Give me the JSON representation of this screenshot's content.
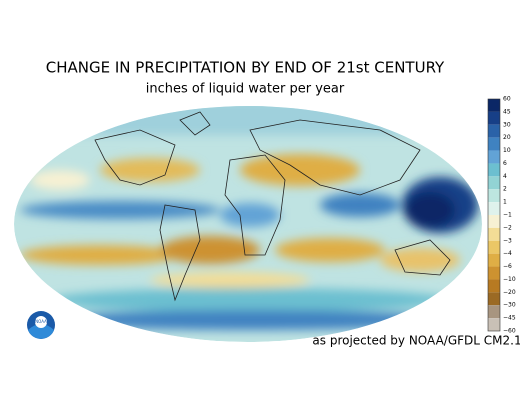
{
  "title": "CHANGE IN PRECIPITATION BY END OF 21st CENTURY",
  "subtitle": "inches of liquid water per year",
  "credit": "as projected by NOAA/GFDL CM2.1",
  "logo": "NOAA",
  "colorbar": {
    "labels": [
      "60",
      "45",
      "30",
      "20",
      "10",
      "6",
      "4",
      "2",
      "1",
      "−1",
      "−2",
      "−3",
      "−4",
      "−6",
      "−10",
      "−20",
      "−30",
      "−45",
      "−60"
    ],
    "colors": [
      "#0b2766",
      "#173f87",
      "#2a62a8",
      "#3f82c1",
      "#62a3d6",
      "#6cbfd0",
      "#92d3d4",
      "#bde6e0",
      "#dff2ec",
      "#f7f1d3",
      "#f3dd96",
      "#ebc766",
      "#dfae45",
      "#cd9230",
      "#b77a22",
      "#9b6a24",
      "#a89580",
      "#c9c0b6"
    ]
  }
}
